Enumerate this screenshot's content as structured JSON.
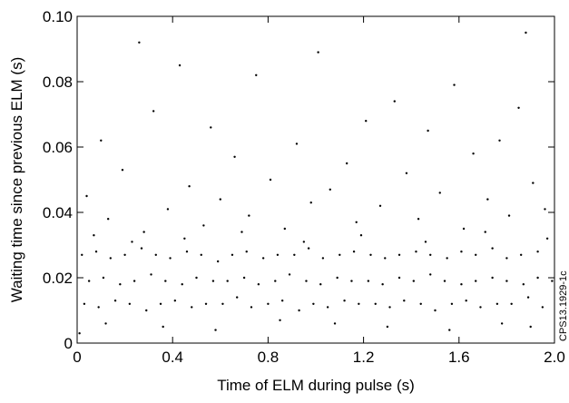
{
  "chart_data": {
    "type": "scatter",
    "xlabel": "Time of ELM during pulse (s)",
    "ylabel": "Waiting time since previous ELM (s)",
    "annotation": "CPS13.1929-1c",
    "color": "#000000",
    "xlim": [
      0,
      2
    ],
    "ylim": [
      0,
      0.1
    ],
    "xticks": [
      0,
      0.4,
      0.8,
      1.2,
      1.6,
      {
        "value": 2,
        "label": "2.0"
      }
    ],
    "yticks": [
      0,
      0.02,
      0.04,
      0.06,
      0.08,
      {
        "value": 0.1,
        "label": "0.10"
      }
    ],
    "x": [
      0.03,
      0.09,
      0.16,
      0.22,
      0.29,
      0.35,
      0.41,
      0.48,
      0.54,
      0.61,
      0.67,
      0.73,
      0.8,
      0.86,
      0.93,
      0.99,
      1.05,
      1.12,
      1.18,
      1.25,
      1.31,
      1.37,
      1.44,
      1.5,
      1.57,
      1.63,
      1.69,
      1.76,
      1.82,
      1.89,
      1.95,
      0.05,
      0.11,
      0.18,
      0.24,
      0.31,
      0.37,
      0.44,
      0.5,
      0.57,
      0.63,
      0.7,
      0.76,
      0.83,
      0.89,
      0.96,
      1.02,
      1.09,
      1.15,
      1.22,
      1.28,
      1.35,
      1.41,
      1.48,
      1.54,
      1.61,
      1.67,
      1.74,
      1.8,
      1.87,
      1.93,
      1.99,
      0.02,
      0.08,
      0.14,
      0.2,
      0.27,
      0.33,
      0.39,
      0.46,
      0.52,
      0.59,
      0.65,
      0.71,
      0.78,
      0.84,
      0.91,
      0.97,
      1.03,
      1.1,
      1.16,
      1.23,
      1.29,
      1.35,
      1.42,
      1.48,
      1.55,
      1.61,
      1.67,
      1.74,
      1.8,
      1.86,
      1.93,
      0.04,
      0.1,
      0.13,
      0.19,
      0.26,
      0.28,
      0.32,
      0.38,
      0.43,
      0.47,
      0.53,
      0.56,
      0.6,
      0.66,
      0.72,
      0.75,
      0.81,
      0.87,
      0.92,
      0.98,
      1.01,
      1.06,
      1.13,
      1.17,
      1.21,
      1.27,
      1.33,
      1.38,
      1.43,
      1.47,
      1.52,
      1.58,
      1.62,
      1.66,
      1.72,
      1.77,
      1.81,
      1.85,
      1.88,
      1.91,
      1.96,
      0.07,
      0.23,
      0.45,
      0.69,
      0.95,
      1.19,
      1.46,
      1.71,
      1.97,
      0.12,
      0.36,
      0.58,
      0.85,
      1.08,
      1.3,
      1.56,
      1.78,
      1.9,
      0.01
    ],
    "y": [
      0.012,
      0.011,
      0.013,
      0.012,
      0.01,
      0.012,
      0.013,
      0.011,
      0.012,
      0.012,
      0.014,
      0.011,
      0.012,
      0.013,
      0.01,
      0.012,
      0.011,
      0.013,
      0.012,
      0.012,
      0.011,
      0.013,
      0.012,
      0.01,
      0.012,
      0.013,
      0.011,
      0.012,
      0.012,
      0.014,
      0.011,
      0.019,
      0.02,
      0.018,
      0.019,
      0.021,
      0.019,
      0.018,
      0.02,
      0.019,
      0.019,
      0.02,
      0.018,
      0.019,
      0.021,
      0.019,
      0.018,
      0.02,
      0.019,
      0.019,
      0.018,
      0.02,
      0.019,
      0.021,
      0.019,
      0.018,
      0.019,
      0.02,
      0.019,
      0.018,
      0.02,
      0.019,
      0.027,
      0.028,
      0.026,
      0.027,
      0.029,
      0.027,
      0.026,
      0.028,
      0.027,
      0.025,
      0.027,
      0.028,
      0.026,
      0.027,
      0.027,
      0.029,
      0.026,
      0.027,
      0.028,
      0.027,
      0.026,
      0.027,
      0.028,
      0.027,
      0.026,
      0.028,
      0.027,
      0.029,
      0.026,
      0.027,
      0.028,
      0.045,
      0.062,
      0.038,
      0.053,
      0.092,
      0.034,
      0.071,
      0.041,
      0.085,
      0.048,
      0.036,
      0.066,
      0.044,
      0.057,
      0.039,
      0.082,
      0.05,
      0.035,
      0.061,
      0.043,
      0.089,
      0.047,
      0.055,
      0.037,
      0.068,
      0.042,
      0.074,
      0.052,
      0.038,
      0.065,
      0.046,
      0.079,
      0.035,
      0.058,
      0.044,
      0.062,
      0.039,
      0.072,
      0.095,
      0.049,
      0.041,
      0.033,
      0.031,
      0.032,
      0.034,
      0.031,
      0.033,
      0.031,
      0.034,
      0.032,
      0.006,
      0.005,
      0.004,
      0.007,
      0.006,
      0.005,
      0.004,
      0.006,
      0.005,
      0.003
    ]
  }
}
